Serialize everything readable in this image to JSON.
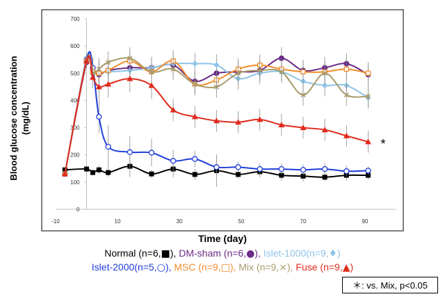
{
  "chart_data": {
    "type": "line",
    "xlabel": "Time (day)",
    "ylabel": "Blood glucose concentration\n(mg/dL)",
    "xlim": [
      -10,
      100
    ],
    "ylim": [
      0,
      700
    ],
    "xticks": [
      -10,
      10,
      30,
      50,
      70,
      90
    ],
    "yticks": [
      0,
      100,
      200,
      300,
      400,
      500,
      600,
      700
    ],
    "grid": false,
    "legend_position": "bottom",
    "annotation": "*",
    "series": [
      {
        "name": "Normal",
        "legend_label": "Normal (n=6,",
        "legend_symbol": "■",
        "legend_close": "),",
        "color": "#000000",
        "marker": "square",
        "x": [
          -7,
          0,
          2,
          4,
          7,
          14,
          21,
          28,
          35,
          42,
          49,
          56,
          63,
          70,
          77,
          84,
          91
        ],
        "y": [
          145,
          148,
          135,
          145,
          135,
          158,
          130,
          148,
          128,
          142,
          128,
          138,
          125,
          122,
          118,
          125,
          125
        ],
        "err": [
          0,
          10,
          10,
          15,
          15,
          40,
          15,
          30,
          20,
          60,
          15,
          20,
          20,
          20,
          15,
          20,
          15
        ]
      },
      {
        "name": "DM-sham",
        "legend_label": "DM-sham (n=6,",
        "legend_symbol": "●",
        "legend_close": "),",
        "color": "#6a2a86",
        "marker": "circle-filled",
        "x": [
          -7,
          0,
          2,
          4,
          7,
          14,
          21,
          28,
          35,
          42,
          49,
          56,
          63,
          70,
          77,
          84,
          91
        ],
        "y": [
          130,
          540,
          510,
          495,
          510,
          520,
          520,
          530,
          470,
          500,
          505,
          510,
          555,
          510,
          520,
          535,
          495
        ],
        "err": [
          0,
          20,
          30,
          40,
          40,
          40,
          40,
          40,
          40,
          40,
          40,
          40,
          40,
          40,
          40,
          40,
          40
        ]
      },
      {
        "name": "Islet-1000",
        "legend_label": "Islet-1000(n=9,",
        "legend_symbol": "♦",
        "legend_close": ")",
        "color": "#8ec3e6",
        "marker": "diamond",
        "x": [
          -7,
          0,
          2,
          4,
          7,
          14,
          21,
          28,
          35,
          42,
          49,
          56,
          63,
          70,
          77,
          84,
          91
        ],
        "y": [
          130,
          555,
          515,
          505,
          505,
          510,
          520,
          535,
          535,
          530,
          480,
          500,
          505,
          470,
          455,
          455,
          410
        ],
        "err": [
          0,
          20,
          40,
          40,
          40,
          40,
          40,
          40,
          40,
          40,
          40,
          40,
          40,
          40,
          40,
          40,
          40
        ]
      },
      {
        "name": "Islet-2000",
        "legend_label": "Islet-2000(n=5,",
        "legend_symbol": "○",
        "legend_close": "),",
        "color": "#1f3ed8",
        "marker": "circle-open",
        "x": [
          -7,
          0,
          2,
          4,
          7,
          14,
          21,
          28,
          35,
          42,
          49,
          56,
          63,
          70,
          77,
          84,
          91
        ],
        "y": [
          130,
          550,
          520,
          340,
          230,
          210,
          208,
          178,
          185,
          155,
          155,
          148,
          148,
          145,
          148,
          140,
          142
        ],
        "err": [
          0,
          20,
          40,
          60,
          80,
          60,
          50,
          40,
          30,
          30,
          20,
          20,
          20,
          20,
          20,
          20,
          15
        ]
      },
      {
        "name": "MSC",
        "legend_label": "MSC (n=9,",
        "legend_symbol": "□",
        "legend_close": "),",
        "color": "#f08c2c",
        "marker": "square-open",
        "x": [
          -7,
          0,
          2,
          4,
          7,
          14,
          21,
          28,
          35,
          42,
          49,
          56,
          63,
          70,
          77,
          84,
          91
        ],
        "y": [
          130,
          545,
          505,
          500,
          510,
          545,
          505,
          545,
          460,
          475,
          515,
          530,
          515,
          505,
          505,
          515,
          500
        ],
        "err": [
          0,
          20,
          30,
          40,
          40,
          40,
          40,
          40,
          40,
          40,
          40,
          40,
          40,
          40,
          40,
          40,
          40
        ]
      },
      {
        "name": "Mix",
        "legend_label": "Mix (n=9,",
        "legend_symbol": "×",
        "legend_close": "),",
        "color": "#a89a6a",
        "marker": "x",
        "x": [
          -7,
          0,
          2,
          4,
          7,
          14,
          21,
          28,
          35,
          42,
          49,
          56,
          63,
          70,
          77,
          84,
          91
        ],
        "y": [
          130,
          545,
          500,
          515,
          540,
          555,
          505,
          515,
          460,
          450,
          500,
          510,
          505,
          420,
          500,
          420,
          415
        ],
        "err": [
          0,
          20,
          30,
          40,
          40,
          40,
          40,
          40,
          40,
          40,
          40,
          40,
          40,
          40,
          40,
          40,
          40
        ]
      },
      {
        "name": "Fuse",
        "legend_label": "Fuse (n=9,",
        "legend_symbol": "▲",
        "legend_close": ")",
        "color": "#e02a1c",
        "marker": "triangle",
        "x": [
          -7,
          0,
          2,
          4,
          7,
          14,
          21,
          28,
          35,
          42,
          49,
          56,
          63,
          70,
          77,
          84,
          91
        ],
        "y": [
          130,
          545,
          485,
          450,
          460,
          480,
          455,
          365,
          340,
          325,
          320,
          330,
          310,
          300,
          292,
          270,
          248
        ],
        "err": [
          0,
          20,
          40,
          50,
          50,
          50,
          50,
          40,
          40,
          40,
          40,
          40,
          40,
          40,
          40,
          40,
          40
        ]
      }
    ]
  },
  "footnote": "＊: vs. Mix, p<0.05"
}
